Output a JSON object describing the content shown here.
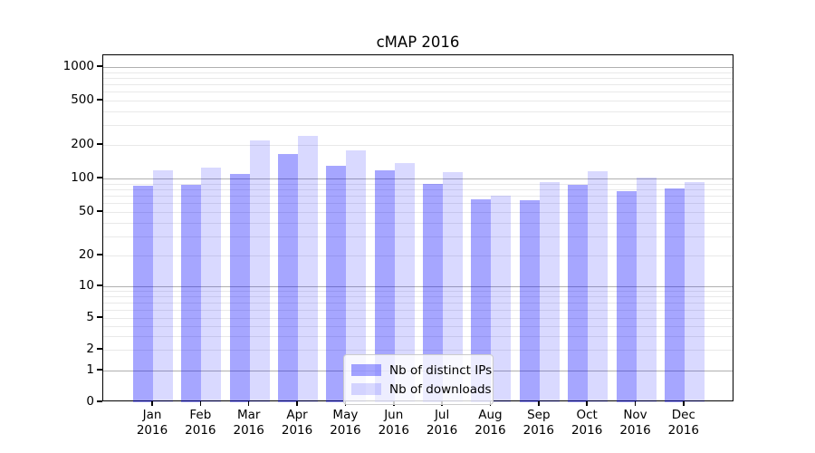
{
  "title": "cMAP 2016",
  "colors": {
    "ips_bar": "rgba(0,0,255,0.35)",
    "ips_bar_hex": "#a6a6ff",
    "downloads_bar": "rgba(0,0,255,0.15)",
    "downloads_bar_hex": "#d9d9ff",
    "major_gridline": "#b0b0b0",
    "minor_gridline": "#e9e9e9",
    "axis_spine": "#000000"
  },
  "chart_data": {
    "type": "bar",
    "title": "cMAP 2016",
    "categories": [
      "Jan 2016",
      "Feb 2016",
      "Mar 2016",
      "Apr 2016",
      "May 2016",
      "Jun 2016",
      "Jul 2016",
      "Aug 2016",
      "Sep 2016",
      "Oct 2016",
      "Nov 2016",
      "Dec 2016"
    ],
    "series": [
      {
        "name": "Nb of distinct IPs",
        "color": "rgba(0,0,255,0.35)",
        "values": [
          86,
          87,
          110,
          166,
          130,
          118,
          89,
          65,
          64,
          88,
          77,
          81
        ]
      },
      {
        "name": "Nb of downloads",
        "color": "rgba(0,0,255,0.15)",
        "values": [
          118,
          126,
          220,
          240,
          180,
          138,
          115,
          70,
          92,
          116,
          102,
          92
        ]
      }
    ],
    "xlabel": "",
    "ylabel": "",
    "yscale": "symlog",
    "yticks": [
      0,
      1,
      2,
      5,
      10,
      20,
      50,
      100,
      200,
      500,
      1000
    ],
    "ylim": [
      0,
      1300
    ],
    "grid": true,
    "legend_position": "lower center"
  }
}
